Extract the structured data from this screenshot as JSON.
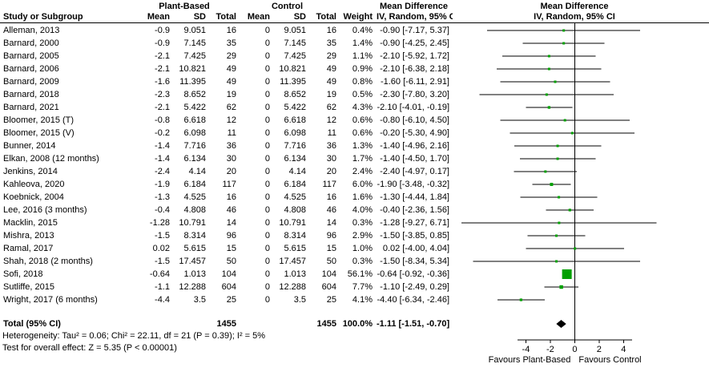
{
  "header": {
    "group1": "Plant-Based",
    "group2": "Control",
    "study": "Study or Subgroup",
    "mean": "Mean",
    "sd": "SD",
    "total": "Total",
    "weight": "Weight",
    "effect": "Mean Difference",
    "method": "IV, Random, 95% CI"
  },
  "chart_data": {
    "type": "forest",
    "effect_measure": "Mean Difference",
    "model": "IV, Random, 95% CI",
    "studies": [
      {
        "name": "Alleman, 2013",
        "mean1": "-0.9",
        "sd1": "9.051",
        "n1": "16",
        "mean2": "0",
        "sd2": "9.051",
        "n2": "16",
        "weight": "0.4%",
        "md": -0.9,
        "lo": -7.17,
        "hi": 5.37,
        "ci_text": "-0.90 [-7.17, 5.37]"
      },
      {
        "name": "Barnard, 2000",
        "mean1": "-0.9",
        "sd1": "7.145",
        "n1": "35",
        "mean2": "0",
        "sd2": "7.145",
        "n2": "35",
        "weight": "1.4%",
        "md": -0.9,
        "lo": -4.25,
        "hi": 2.45,
        "ci_text": "-0.90 [-4.25, 2.45]"
      },
      {
        "name": "Barnard, 2005",
        "mean1": "-2.1",
        "sd1": "7.425",
        "n1": "29",
        "mean2": "0",
        "sd2": "7.425",
        "n2": "29",
        "weight": "1.1%",
        "md": -2.1,
        "lo": -5.92,
        "hi": 1.72,
        "ci_text": "-2.10 [-5.92, 1.72]"
      },
      {
        "name": "Barnard, 2006",
        "mean1": "-2.1",
        "sd1": "10.821",
        "n1": "49",
        "mean2": "0",
        "sd2": "10.821",
        "n2": "49",
        "weight": "0.9%",
        "md": -2.1,
        "lo": -6.38,
        "hi": 2.18,
        "ci_text": "-2.10 [-6.38, 2.18]"
      },
      {
        "name": "Barnard, 2009",
        "mean1": "-1.6",
        "sd1": "11.395",
        "n1": "49",
        "mean2": "0",
        "sd2": "11.395",
        "n2": "49",
        "weight": "0.8%",
        "md": -1.6,
        "lo": -6.11,
        "hi": 2.91,
        "ci_text": "-1.60 [-6.11, 2.91]"
      },
      {
        "name": "Barnard, 2018",
        "mean1": "-2.3",
        "sd1": "8.652",
        "n1": "19",
        "mean2": "0",
        "sd2": "8.652",
        "n2": "19",
        "weight": "0.5%",
        "md": -2.3,
        "lo": -7.8,
        "hi": 3.2,
        "ci_text": "-2.30 [-7.80, 3.20]"
      },
      {
        "name": "Barnard, 2021",
        "mean1": "-2.1",
        "sd1": "5.422",
        "n1": "62",
        "mean2": "0",
        "sd2": "5.422",
        "n2": "62",
        "weight": "4.3%",
        "md": -2.1,
        "lo": -4.01,
        "hi": -0.19,
        "ci_text": "-2.10 [-4.01, -0.19]"
      },
      {
        "name": "Bloomer, 2015 (T)",
        "mean1": "-0.8",
        "sd1": "6.618",
        "n1": "12",
        "mean2": "0",
        "sd2": "6.618",
        "n2": "12",
        "weight": "0.6%",
        "md": -0.8,
        "lo": -6.1,
        "hi": 4.5,
        "ci_text": "-0.80 [-6.10, 4.50]"
      },
      {
        "name": "Bloomer, 2015 (V)",
        "mean1": "-0.2",
        "sd1": "6.098",
        "n1": "11",
        "mean2": "0",
        "sd2": "6.098",
        "n2": "11",
        "weight": "0.6%",
        "md": -0.2,
        "lo": -5.3,
        "hi": 4.9,
        "ci_text": "-0.20 [-5.30, 4.90]"
      },
      {
        "name": "Bunner, 2014",
        "mean1": "-1.4",
        "sd1": "7.716",
        "n1": "36",
        "mean2": "0",
        "sd2": "7.716",
        "n2": "36",
        "weight": "1.3%",
        "md": -1.4,
        "lo": -4.96,
        "hi": 2.16,
        "ci_text": "-1.40 [-4.96, 2.16]"
      },
      {
        "name": "Elkan, 2008 (12 months)",
        "mean1": "-1.4",
        "sd1": "6.134",
        "n1": "30",
        "mean2": "0",
        "sd2": "6.134",
        "n2": "30",
        "weight": "1.7%",
        "md": -1.4,
        "lo": -4.5,
        "hi": 1.7,
        "ci_text": "-1.40 [-4.50, 1.70]"
      },
      {
        "name": "Jenkins, 2014",
        "mean1": "-2.4",
        "sd1": "4.14",
        "n1": "20",
        "mean2": "0",
        "sd2": "4.14",
        "n2": "20",
        "weight": "2.4%",
        "md": -2.4,
        "lo": -4.97,
        "hi": 0.17,
        "ci_text": "-2.40 [-4.97, 0.17]"
      },
      {
        "name": "Kahleova, 2020",
        "mean1": "-1.9",
        "sd1": "6.184",
        "n1": "117",
        "mean2": "0",
        "sd2": "6.184",
        "n2": "117",
        "weight": "6.0%",
        "md": -1.9,
        "lo": -3.48,
        "hi": -0.32,
        "ci_text": "-1.90 [-3.48, -0.32]"
      },
      {
        "name": "Koebnick, 2004",
        "mean1": "-1.3",
        "sd1": "4.525",
        "n1": "16",
        "mean2": "0",
        "sd2": "4.525",
        "n2": "16",
        "weight": "1.6%",
        "md": -1.3,
        "lo": -4.44,
        "hi": 1.84,
        "ci_text": "-1.30 [-4.44, 1.84]"
      },
      {
        "name": "Lee, 2016 (3 months)",
        "mean1": "-0.4",
        "sd1": "4.808",
        "n1": "46",
        "mean2": "0",
        "sd2": "4.808",
        "n2": "46",
        "weight": "4.0%",
        "md": -0.4,
        "lo": -2.36,
        "hi": 1.56,
        "ci_text": "-0.40 [-2.36, 1.56]"
      },
      {
        "name": "Macklin, 2015",
        "mean1": "-1.28",
        "sd1": "10.791",
        "n1": "14",
        "mean2": "0",
        "sd2": "10.791",
        "n2": "14",
        "weight": "0.3%",
        "md": -1.28,
        "lo": -9.27,
        "hi": 6.71,
        "ci_text": "-1.28 [-9.27, 6.71]"
      },
      {
        "name": "Mishra, 2013",
        "mean1": "-1.5",
        "sd1": "8.314",
        "n1": "96",
        "mean2": "0",
        "sd2": "8.314",
        "n2": "96",
        "weight": "2.9%",
        "md": -1.5,
        "lo": -3.85,
        "hi": 0.85,
        "ci_text": "-1.50 [-3.85, 0.85]"
      },
      {
        "name": "Ramal, 2017",
        "mean1": "0.02",
        "sd1": "5.615",
        "n1": "15",
        "mean2": "0",
        "sd2": "5.615",
        "n2": "15",
        "weight": "1.0%",
        "md": 0.02,
        "lo": -4.0,
        "hi": 4.04,
        "ci_text": "0.02 [-4.00, 4.04]"
      },
      {
        "name": "Shah, 2018 (2 months)",
        "mean1": "-1.5",
        "sd1": "17.457",
        "n1": "50",
        "mean2": "0",
        "sd2": "17.457",
        "n2": "50",
        "weight": "0.3%",
        "md": -1.5,
        "lo": -8.34,
        "hi": 5.34,
        "ci_text": "-1.50 [-8.34, 5.34]"
      },
      {
        "name": "Sofi, 2018",
        "mean1": "-0.64",
        "sd1": "1.013",
        "n1": "104",
        "mean2": "0",
        "sd2": "1.013",
        "n2": "104",
        "weight": "56.1%",
        "md": -0.64,
        "lo": -0.92,
        "hi": -0.36,
        "ci_text": "-0.64 [-0.92, -0.36]"
      },
      {
        "name": "Sutliffe, 2015",
        "mean1": "-1.1",
        "sd1": "12.288",
        "n1": "604",
        "mean2": "0",
        "sd2": "12.288",
        "n2": "604",
        "weight": "7.7%",
        "md": -1.1,
        "lo": -2.49,
        "hi": 0.29,
        "ci_text": "-1.10 [-2.49, 0.29]"
      },
      {
        "name": "Wright, 2017 (6 months)",
        "mean1": "-4.4",
        "sd1": "3.5",
        "n1": "25",
        "mean2": "0",
        "sd2": "3.5",
        "n2": "25",
        "weight": "4.1%",
        "md": -4.4,
        "lo": -6.34,
        "hi": -2.46,
        "ci_text": "-4.40 [-6.34, -2.46]"
      }
    ],
    "total": {
      "label": "Total (95% CI)",
      "n1": "1455",
      "n2": "1455",
      "weight": "100.0%",
      "md": -1.11,
      "lo": -1.51,
      "hi": -0.7,
      "ci_text": "-1.11 [-1.51, -0.70]"
    },
    "axis": {
      "ticks": [
        -4,
        -2,
        0,
        2,
        4
      ],
      "xmin": -10,
      "xmax": 11,
      "left_label": "Favours Plant-Based",
      "right_label": "Favours Control"
    },
    "footnotes": {
      "heterogeneity": "Heterogeneity: Tau² = 0.06; Chi² = 22.11, df = 21 (P = 0.39); I² = 5%",
      "overall": "Test for overall effect: Z = 5.35 (P < 0.00001)"
    },
    "colors": {
      "square": "#00a000",
      "diamond": "#000000",
      "line": "#000000"
    }
  }
}
